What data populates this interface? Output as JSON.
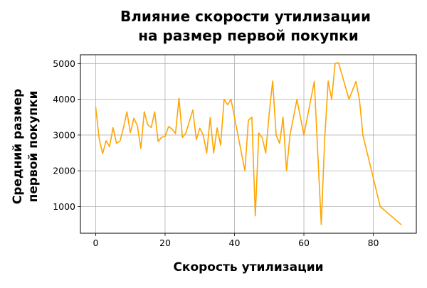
{
  "chart_data": {
    "type": "line",
    "title_lines": [
      "Влияние скорости утилизации",
      "на размер первой покупки"
    ],
    "xlabel": "Скорость утилизации",
    "ylabel_lines": [
      "Средний размер",
      "первой покупки"
    ],
    "xlim": [
      -4.4,
      92.4
    ],
    "ylim": [
      255,
      5245
    ],
    "xticks": [
      0,
      20,
      40,
      60,
      80
    ],
    "yticks": [
      1000,
      2000,
      3000,
      4000,
      5000
    ],
    "xtick_labels": [
      "0",
      "20",
      "40",
      "60",
      "80"
    ],
    "ytick_labels": [
      "1000",
      "2000",
      "3000",
      "4000",
      "5000"
    ],
    "grid": true,
    "line_color": "#ffa500",
    "series": [
      {
        "x": [
          0,
          1,
          2,
          3,
          4,
          5,
          6,
          7,
          8,
          9,
          10,
          11,
          12,
          13,
          14,
          15,
          16,
          17,
          18,
          19,
          20,
          21,
          22,
          23,
          24,
          25,
          26,
          27,
          28,
          29,
          30,
          31,
          32,
          33,
          34,
          35,
          36,
          37,
          38,
          39,
          40,
          43,
          44,
          45,
          46,
          47,
          48,
          49,
          50,
          51,
          52,
          53,
          54,
          55,
          56,
          58,
          60,
          62,
          63,
          65,
          66,
          67,
          68,
          69,
          70,
          73,
          75,
          76,
          77,
          82,
          88
        ],
        "y": [
          3780,
          2900,
          2480,
          2840,
          2680,
          3210,
          2770,
          2830,
          3200,
          3650,
          3070,
          3470,
          3270,
          2630,
          3650,
          3290,
          3210,
          3650,
          2820,
          2940,
          2960,
          3240,
          3170,
          3040,
          4030,
          2930,
          3060,
          3390,
          3700,
          2870,
          3190,
          3000,
          2500,
          3490,
          2500,
          3200,
          2720,
          4000,
          3850,
          4000,
          3500,
          2000,
          3410,
          3500,
          740,
          3060,
          2920,
          2500,
          3600,
          4510,
          3000,
          2770,
          3500,
          2000,
          3000,
          4000,
          3000,
          4000,
          4500,
          500,
          2900,
          4510,
          4000,
          5000,
          5020,
          4000,
          4500,
          4000,
          3000,
          1000,
          500
        ]
      }
    ]
  }
}
